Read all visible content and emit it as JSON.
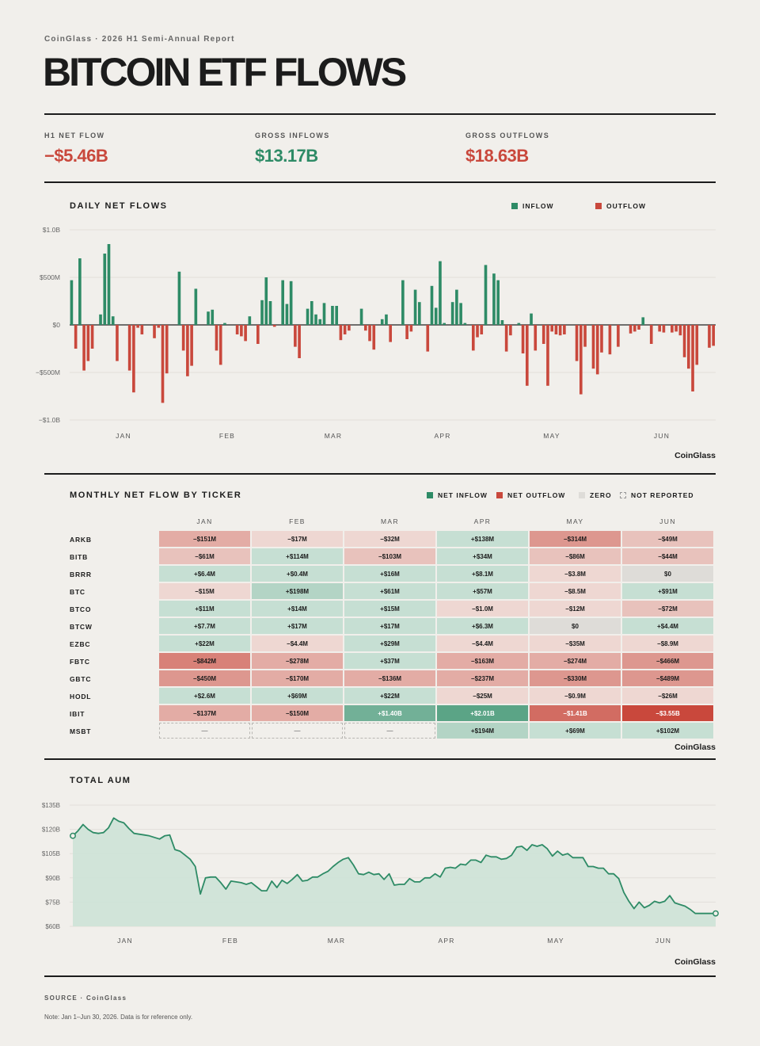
{
  "header": {
    "kicker": "CoinGlass · 2026 H1 Semi-Annual Report",
    "title": "BITCOIN ETF FLOWS"
  },
  "kpis": [
    {
      "label": "H1 NET FLOW",
      "value": "−$5.46B",
      "tone": "negative"
    },
    {
      "label": "GROSS INFLOWS",
      "value": "$13.17B",
      "tone": "positive"
    },
    {
      "label": "GROSS OUTFLOWS",
      "value": "$18.63B",
      "tone": "negative"
    }
  ],
  "colors": {
    "inflow": "#2e8b66",
    "outflow": "#c9483c",
    "area_fill": "#cfe3d8",
    "area_line": "#2e8b66"
  },
  "daily": {
    "title": "DAILY NET FLOWS",
    "legend_inflow": "INFLOW",
    "legend_outflow": "OUTFLOW",
    "y_ticks": [
      "$1.0B",
      "$500M",
      "$0",
      "−$500M",
      "−$1.0B"
    ],
    "months": [
      "JAN",
      "FEB",
      "MAR",
      "APR",
      "MAY",
      "JUN"
    ],
    "brand": "CoinGlass"
  },
  "monthly": {
    "title": "MONTHLY NET FLOW BY TICKER",
    "legend": [
      "NET INFLOW",
      "NET OUTFLOW",
      "ZERO",
      "NOT REPORTED"
    ],
    "columns": [
      "JAN",
      "FEB",
      "MAR",
      "APR",
      "MAY",
      "JUN"
    ],
    "brand": "CoinGlass"
  },
  "aum": {
    "title": "TOTAL AUM",
    "y_ticks": [
      "$135B",
      "$120B",
      "$105B",
      "$90B",
      "$75B",
      "$60B"
    ],
    "months": [
      "JAN",
      "FEB",
      "MAR",
      "APR",
      "MAY",
      "JUN"
    ],
    "brand": "CoinGlass"
  },
  "footer": {
    "source": "SOURCE · CoinGlass",
    "note": "Note: Jan 1–Jun 30, 2026. Data is for reference only."
  },
  "chart_data": [
    {
      "type": "bar",
      "title": "DAILY NET FLOWS",
      "unit": "$M",
      "ylim": [
        -1000,
        1000
      ],
      "series": [
        {
          "name": "INFLOW",
          "color": "#2e8b66"
        },
        {
          "name": "OUTFLOW",
          "color": "#c9483c"
        }
      ],
      "values": [
        470,
        -250,
        700,
        -480,
        -380,
        -250,
        0,
        110,
        750,
        850,
        90,
        -380,
        0,
        0,
        -480,
        -710,
        -30,
        -100,
        0,
        0,
        -140,
        -30,
        -820,
        -510,
        0,
        0,
        560,
        -270,
        -540,
        -430,
        380,
        0,
        0,
        140,
        160,
        -270,
        -420,
        20,
        0,
        0,
        -100,
        -120,
        -170,
        90,
        0,
        -200,
        260,
        500,
        250,
        -20,
        0,
        470,
        220,
        460,
        -230,
        -350,
        0,
        170,
        250,
        110,
        60,
        230,
        0,
        200,
        200,
        -160,
        -100,
        -60,
        0,
        0,
        170,
        -60,
        -170,
        -260,
        0,
        60,
        110,
        -180,
        0,
        0,
        470,
        -150,
        -70,
        370,
        240,
        0,
        -280,
        410,
        180,
        670,
        20,
        0,
        240,
        370,
        230,
        20,
        0,
        -270,
        -130,
        -100,
        630,
        0,
        540,
        470,
        50,
        -280,
        -110,
        0,
        20,
        -300,
        -640,
        120,
        -270,
        0,
        -200,
        -640,
        -70,
        -100,
        -110,
        -100,
        0,
        0,
        -380,
        -730,
        -230,
        0,
        -460,
        -520,
        -290,
        0,
        -310,
        0,
        -230,
        0,
        0,
        -90,
        -70,
        -50,
        80,
        0,
        -200,
        0,
        -70,
        -80,
        0,
        -80,
        -70,
        -110,
        -340,
        -460,
        -700,
        -420,
        0,
        0,
        -240,
        -220
      ]
    },
    {
      "type": "heatmap",
      "title": "MONTHLY NET FLOW BY TICKER",
      "columns": [
        "JAN",
        "FEB",
        "MAR",
        "APR",
        "MAY",
        "JUN"
      ],
      "rows": [
        {
          "ticker": "ARKB",
          "labels": [
            "−$151M",
            "−$17M",
            "−$32M",
            "+$138M",
            "−$314M",
            "−$49M"
          ],
          "values": [
            -151,
            -17,
            -32,
            138,
            -314,
            -49
          ]
        },
        {
          "ticker": "BITB",
          "labels": [
            "−$61M",
            "+$114M",
            "−$103M",
            "+$34M",
            "−$86M",
            "−$44M"
          ],
          "values": [
            -61,
            114,
            -103,
            34,
            -86,
            -44
          ]
        },
        {
          "ticker": "BRRR",
          "labels": [
            "+$6.4M",
            "+$0.4M",
            "+$16M",
            "+$8.1M",
            "−$3.8M",
            "$0"
          ],
          "values": [
            6.4,
            0.4,
            16,
            8.1,
            -3.8,
            0
          ]
        },
        {
          "ticker": "BTC",
          "labels": [
            "−$15M",
            "+$198M",
            "+$61M",
            "+$57M",
            "−$8.5M",
            "+$91M"
          ],
          "values": [
            -15,
            198,
            61,
            57,
            -8.5,
            91
          ]
        },
        {
          "ticker": "BTCO",
          "labels": [
            "+$11M",
            "+$14M",
            "+$15M",
            "−$1.0M",
            "−$12M",
            "−$72M"
          ],
          "values": [
            11,
            14,
            15,
            -1.0,
            -12,
            -72
          ]
        },
        {
          "ticker": "BTCW",
          "labels": [
            "+$7.7M",
            "+$17M",
            "+$17M",
            "+$6.3M",
            "$0",
            "+$4.4M"
          ],
          "values": [
            7.7,
            17,
            17,
            6.3,
            0,
            4.4
          ]
        },
        {
          "ticker": "EZBC",
          "labels": [
            "+$22M",
            "−$4.4M",
            "+$29M",
            "−$4.4M",
            "−$35M",
            "−$8.9M"
          ],
          "values": [
            22,
            -4.4,
            29,
            -4.4,
            -35,
            -8.9
          ]
        },
        {
          "ticker": "FBTC",
          "labels": [
            "−$842M",
            "−$278M",
            "+$37M",
            "−$163M",
            "−$274M",
            "−$466M"
          ],
          "values": [
            -842,
            -278,
            37,
            -163,
            -274,
            -466
          ]
        },
        {
          "ticker": "GBTC",
          "labels": [
            "−$450M",
            "−$170M",
            "−$136M",
            "−$237M",
            "−$330M",
            "−$489M"
          ],
          "values": [
            -450,
            -170,
            -136,
            -237,
            -330,
            -489
          ]
        },
        {
          "ticker": "HODL",
          "labels": [
            "+$2.6M",
            "+$69M",
            "+$22M",
            "−$25M",
            "−$0.9M",
            "−$26M"
          ],
          "values": [
            2.6,
            69,
            22,
            -25,
            -0.9,
            -26
          ]
        },
        {
          "ticker": "IBIT",
          "labels": [
            "−$137M",
            "−$150M",
            "+$1.40B",
            "+$2.01B",
            "−$1.41B",
            "−$3.55B"
          ],
          "values": [
            -137,
            -150,
            1400,
            2010,
            -1410,
            -3550
          ]
        },
        {
          "ticker": "MSBT",
          "labels": [
            "—",
            "—",
            "—",
            "+$194M",
            "+$69M",
            "+$102M"
          ],
          "values": [
            null,
            null,
            null,
            194,
            69,
            102
          ]
        }
      ]
    },
    {
      "type": "area",
      "title": "TOTAL AUM",
      "unit": "$B",
      "ylim": [
        60,
        135
      ],
      "values": [
        116,
        119,
        123,
        120,
        118,
        117.5,
        118,
        121,
        127,
        125,
        124,
        120.5,
        117.5,
        117,
        116.5,
        116,
        115,
        114,
        116,
        116.5,
        107.5,
        106.5,
        104,
        101.5,
        97,
        80,
        90,
        90.5,
        90.5,
        87,
        83,
        88,
        87.5,
        87,
        86,
        87,
        84.5,
        82,
        82,
        88,
        84,
        88.5,
        86.5,
        89,
        92,
        88,
        88.5,
        90.5,
        90.5,
        92.5,
        94,
        97,
        99.5,
        101.5,
        102.5,
        98,
        92.5,
        92,
        93.5,
        92,
        92.5,
        89,
        92.5,
        85.5,
        86,
        86,
        89.5,
        87.5,
        87.5,
        90,
        90,
        92.5,
        90.5,
        96,
        96.5,
        96,
        98.5,
        98,
        101,
        101,
        99.5,
        104,
        103,
        103,
        101.5,
        102,
        104,
        109,
        109.5,
        107,
        110.5,
        109.5,
        110.5,
        108,
        103.5,
        106.5,
        104,
        105,
        102.5,
        102.5,
        102.5,
        97,
        97,
        96,
        96,
        92.5,
        92.5,
        89.5,
        81,
        75.5,
        71,
        75,
        71.5,
        73,
        75.5,
        74.5,
        75.5,
        79,
        74.5,
        73.5,
        72.5,
        70.5,
        68,
        68,
        68,
        68,
        68
      ]
    }
  ]
}
